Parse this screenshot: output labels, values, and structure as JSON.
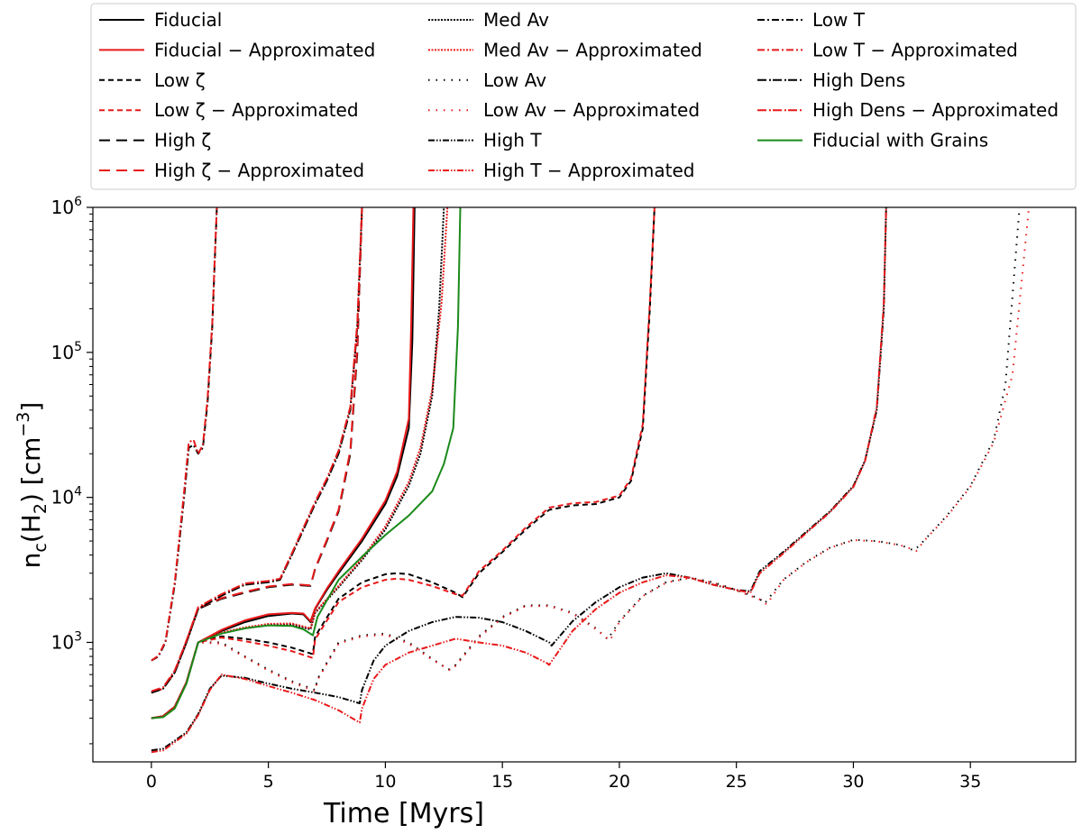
{
  "chart_data": {
    "type": "line",
    "title": "",
    "xlabel": "Time [Myrs]",
    "ylabel": "n_c(H_2) [cm^-3]",
    "ylabel_parts": {
      "base": "n",
      "sub1": "c",
      "mid": "(H",
      "sub2": "2",
      "end": ") [cm",
      "sup": "−3",
      "close": "]"
    },
    "x_scale": "linear",
    "y_scale": "log",
    "xlim": [
      -2.5,
      39.5
    ],
    "ylim": [
      150,
      1000000
    ],
    "x_ticks": [
      0,
      5,
      10,
      15,
      20,
      25,
      30,
      35
    ],
    "x_tick_labels": [
      "0",
      "5",
      "10",
      "15",
      "20",
      "25",
      "30",
      "35"
    ],
    "y_ticks": [
      1000,
      10000,
      100000,
      1000000
    ],
    "y_tick_labels": [
      {
        "base": "10",
        "exp": "3"
      },
      {
        "base": "10",
        "exp": "4"
      },
      {
        "base": "10",
        "exp": "5"
      },
      {
        "base": "10",
        "exp": "6"
      }
    ],
    "grid": false,
    "legend_position": "top",
    "legend_columns": 3,
    "series": [
      {
        "name": "Fiducial",
        "color": "#000000",
        "dash": "solid",
        "x": [
          0,
          0.5,
          1,
          1.5,
          2,
          3,
          4,
          5,
          6,
          6.5,
          6.8,
          7.0,
          7.5,
          8,
          9,
          10,
          10.5,
          11,
          11.15,
          11.25
        ],
        "y": [
          300,
          310,
          360,
          530,
          1000,
          1200,
          1380,
          1520,
          1580,
          1560,
          1380,
          1700,
          2300,
          3000,
          5000,
          9000,
          14000,
          30000,
          120000,
          1000000
        ]
      },
      {
        "name": "Fiducial − Approximated",
        "color": "#e8191a",
        "dash": "solid",
        "x": [
          0,
          0.5,
          1,
          1.5,
          2,
          3,
          4,
          5,
          6,
          6.5,
          6.8,
          7.0,
          7.5,
          8,
          9,
          10,
          10.5,
          11,
          11.1,
          11.2
        ],
        "y": [
          300,
          310,
          360,
          530,
          1000,
          1220,
          1420,
          1560,
          1600,
          1580,
          1400,
          1720,
          2350,
          3100,
          5200,
          9500,
          15000,
          35000,
          150000,
          1000000
        ]
      },
      {
        "name": "Low ζ",
        "color": "#000000",
        "dash": "6,4",
        "x": [
          0,
          0.5,
          1,
          1.5,
          2,
          3,
          4,
          5,
          6,
          6.9,
          7.0,
          8,
          9,
          10,
          10.5,
          11,
          12,
          13,
          13.3,
          14,
          15,
          16,
          17,
          18,
          19,
          20,
          20.5,
          21,
          21.3,
          21.5
        ],
        "y": [
          300,
          310,
          360,
          530,
          1000,
          1100,
          1060,
          1000,
          920,
          830,
          1100,
          2000,
          2600,
          2950,
          3000,
          2950,
          2600,
          2200,
          2050,
          3000,
          4200,
          6000,
          8200,
          8800,
          9000,
          10000,
          13000,
          30000,
          200000,
          1000000
        ]
      },
      {
        "name": "Low ζ − Approximated",
        "color": "#e8191a",
        "dash": "6,4",
        "x": [
          0,
          0.5,
          1,
          1.5,
          2,
          3,
          4,
          5,
          6,
          6.9,
          7.0,
          8,
          9,
          10,
          10.5,
          11,
          12,
          13,
          13.3,
          14,
          15,
          16,
          17,
          18,
          19,
          20,
          20.5,
          21,
          21.3,
          21.5
        ],
        "y": [
          300,
          310,
          360,
          530,
          1000,
          1080,
          1020,
          950,
          870,
          780,
          1050,
          1900,
          2400,
          2700,
          2750,
          2700,
          2450,
          2150,
          2100,
          3100,
          4300,
          6200,
          8500,
          9100,
          9300,
          10300,
          13500,
          32000,
          220000,
          1000000
        ]
      },
      {
        "name": "High ζ",
        "color": "#000000",
        "dash": "12,7",
        "x": [
          0,
          0.5,
          1,
          1.5,
          2,
          3,
          4,
          5,
          6,
          6.8,
          7.0,
          7.5,
          8,
          8.5,
          8.8,
          9.0
        ],
        "y": [
          450,
          480,
          620,
          1000,
          1700,
          2000,
          2200,
          2400,
          2500,
          2450,
          3200,
          5000,
          8000,
          20000,
          100000,
          1000000
        ]
      },
      {
        "name": "High ζ − Approximated",
        "color": "#e8191a",
        "dash": "12,7",
        "x": [
          0,
          0.5,
          1,
          1.5,
          2,
          3,
          4,
          5,
          6,
          6.8,
          7.0,
          7.5,
          8,
          8.5,
          8.8,
          9.0
        ],
        "y": [
          450,
          480,
          630,
          1020,
          1720,
          2020,
          2230,
          2430,
          2530,
          2470,
          3250,
          5100,
          8200,
          21000,
          110000,
          1000000
        ]
      },
      {
        "name": "Med Av",
        "color": "#000000",
        "dash": "2,1.5",
        "x": [
          0,
          0.5,
          1,
          1.5,
          2,
          3,
          4,
          5,
          6,
          6.8,
          7.0,
          8,
          9,
          10,
          11,
          11.5,
          12,
          12.3,
          12.5
        ],
        "y": [
          300,
          310,
          360,
          530,
          1000,
          1160,
          1250,
          1320,
          1330,
          1230,
          1600,
          2400,
          3700,
          6000,
          12000,
          20000,
          50000,
          200000,
          1000000
        ]
      },
      {
        "name": "Med Av − Approximated",
        "color": "#e8191a",
        "dash": "2,1.5",
        "x": [
          0,
          0.5,
          1,
          1.5,
          2,
          3,
          4,
          5,
          6,
          6.8,
          7.0,
          8,
          9,
          10,
          11,
          11.5,
          12,
          12.4,
          12.65
        ],
        "y": [
          300,
          310,
          360,
          530,
          1000,
          1170,
          1270,
          1340,
          1350,
          1250,
          1620,
          2450,
          3800,
          6300,
          12800,
          22000,
          55000,
          220000,
          1000000
        ]
      },
      {
        "name": "Low Av",
        "color": "#000000",
        "dash": "1.5,7",
        "x": [
          0,
          0.5,
          1,
          1.5,
          2,
          3,
          4,
          5,
          6,
          7.0,
          7.1,
          8,
          9,
          10,
          11,
          12,
          12.7,
          13,
          14,
          15,
          16,
          17,
          18,
          19,
          19.5,
          20,
          21,
          22,
          23,
          24,
          25,
          26,
          26.2,
          27,
          28,
          29,
          30,
          31,
          32,
          32.6,
          33,
          34,
          35,
          36,
          36.5,
          37.1
        ],
        "y": [
          300,
          310,
          360,
          530,
          1000,
          1000,
          800,
          650,
          540,
          470,
          560,
          1000,
          1120,
          1150,
          1000,
          770,
          650,
          700,
          1100,
          1500,
          1800,
          1800,
          1600,
          1250,
          1050,
          1400,
          2100,
          2600,
          2800,
          2600,
          2300,
          2000,
          1850,
          2700,
          3600,
          4500,
          5100,
          5000,
          4700,
          4300,
          5000,
          7500,
          12000,
          25000,
          60000,
          1000000
        ]
      },
      {
        "name": "Low Av − Approximated",
        "color": "#e8191a",
        "dash": "1.5,7",
        "x": [
          0,
          0.5,
          1,
          1.5,
          2,
          3,
          4,
          5,
          6,
          7.0,
          7.1,
          8,
          9,
          10,
          11,
          12,
          12.8,
          13,
          14,
          15,
          16,
          17,
          18,
          19,
          19.6,
          20,
          21,
          22,
          23,
          24,
          25,
          26,
          26.3,
          27,
          28,
          29,
          30,
          31,
          32,
          32.7,
          33,
          34,
          35,
          36,
          36.8,
          37.5
        ],
        "y": [
          300,
          310,
          360,
          530,
          1000,
          980,
          790,
          640,
          530,
          460,
          550,
          980,
          1100,
          1130,
          980,
          760,
          640,
          690,
          1080,
          1480,
          1780,
          1780,
          1580,
          1230,
          1030,
          1380,
          2080,
          2580,
          2780,
          2580,
          2280,
          1980,
          1830,
          2680,
          3580,
          4480,
          5080,
          4980,
          4680,
          4280,
          4980,
          7400,
          11800,
          24000,
          70000,
          1000000
        ]
      },
      {
        "name": "High T",
        "color": "#000000",
        "dash": "7,2,1.5,2,1.5,2",
        "x": [
          0,
          0.5,
          1,
          1.5,
          2,
          2.5,
          3,
          4,
          5,
          6,
          7,
          8,
          8.9,
          9.0,
          9.5,
          10,
          11,
          12,
          13,
          14,
          15,
          16,
          17,
          17.1,
          18,
          19,
          20,
          21,
          22,
          23,
          24,
          25,
          25.6,
          26,
          27,
          28,
          29,
          30,
          30.5,
          31,
          31.3,
          31.4
        ],
        "y": [
          180,
          185,
          210,
          240,
          320,
          480,
          590,
          570,
          520,
          480,
          450,
          420,
          380,
          470,
          750,
          950,
          1200,
          1380,
          1500,
          1480,
          1380,
          1200,
          1000,
          950,
          1400,
          1900,
          2400,
          2800,
          3000,
          2800,
          2500,
          2300,
          2250,
          3100,
          4200,
          5800,
          8000,
          12000,
          18000,
          40000,
          200000,
          1000000
        ]
      },
      {
        "name": "High T − Approximated",
        "color": "#e8191a",
        "dash": "7,2,1.5,2,1.5,2",
        "x": [
          0,
          0.5,
          1,
          1.5,
          2,
          2.5,
          3,
          4,
          5,
          6,
          7,
          8,
          8.9,
          9.0,
          9.5,
          10,
          11,
          12,
          13,
          14,
          15,
          16,
          16.9,
          17.0,
          18,
          19,
          20,
          21,
          22,
          23,
          24,
          25,
          25.6,
          26,
          27,
          28,
          29,
          30,
          30.5,
          31,
          31.3,
          31.4
        ],
        "y": [
          175,
          180,
          205,
          235,
          315,
          470,
          600,
          560,
          500,
          450,
          400,
          340,
          280,
          350,
          560,
          700,
          850,
          950,
          1060,
          1000,
          950,
          850,
          720,
          700,
          1200,
          1700,
          2200,
          2600,
          2900,
          2800,
          2500,
          2300,
          2200,
          3000,
          4100,
          5700,
          7900,
          11800,
          17800,
          42000,
          220000,
          1000000
        ]
      },
      {
        "name": "Low T",
        "color": "#000000",
        "dash": "8,3,2,3",
        "x": [
          0,
          0.3,
          0.6,
          1.0,
          1.4,
          1.6,
          1.8,
          2.0,
          2.2,
          2.4,
          2.6,
          2.7,
          2.8
        ],
        "y": [
          750,
          800,
          1000,
          2500,
          10000,
          22000,
          23000,
          20000,
          22000,
          45000,
          150000,
          400000,
          1000000
        ]
      },
      {
        "name": "Low T − Approximated",
        "color": "#e8191a",
        "dash": "8,3,2,3",
        "x": [
          0,
          0.3,
          0.6,
          1.0,
          1.4,
          1.6,
          1.8,
          2.0,
          2.2,
          2.4,
          2.6,
          2.7,
          2.8
        ],
        "y": [
          750,
          810,
          1020,
          2600,
          11000,
          24000,
          25000,
          20000,
          23000,
          48000,
          160000,
          420000,
          1000000
        ]
      },
      {
        "name": "High Dens",
        "color": "#000000",
        "dash": "10,3,2,2",
        "x": [
          0,
          0.5,
          1,
          1.5,
          2,
          3,
          4,
          5,
          5.5,
          6,
          6.5,
          7,
          7.5,
          8,
          8.5,
          8.8,
          9.0
        ],
        "y": [
          450,
          480,
          620,
          1000,
          1700,
          2100,
          2500,
          2600,
          2700,
          4000,
          6000,
          9000,
          13000,
          20000,
          40000,
          150000,
          1000000
        ]
      },
      {
        "name": "High Dens − Approximated",
        "color": "#e8191a",
        "dash": "10,3,2,2",
        "x": [
          0,
          0.5,
          1,
          1.5,
          2,
          3,
          4,
          5,
          5.5,
          6,
          6.5,
          7,
          7.5,
          8,
          8.5,
          8.8,
          9.0
        ],
        "y": [
          460,
          490,
          640,
          1030,
          1750,
          2150,
          2550,
          2650,
          2750,
          4100,
          6200,
          9300,
          13500,
          21000,
          42000,
          160000,
          1000000
        ]
      },
      {
        "name": "Fiducial with Grains",
        "color": "#1a8a1a",
        "dash": "solid",
        "x": [
          0,
          0.5,
          1,
          1.5,
          2,
          3,
          4,
          5,
          6,
          6.5,
          6.9,
          7.1,
          8,
          9,
          10,
          11,
          12,
          12.5,
          12.9,
          13.1,
          13.2
        ],
        "y": [
          300,
          305,
          350,
          520,
          1000,
          1150,
          1250,
          1310,
          1300,
          1230,
          1120,
          1500,
          2700,
          3900,
          5500,
          7500,
          11000,
          17000,
          30000,
          150000,
          1000000
        ]
      }
    ]
  }
}
